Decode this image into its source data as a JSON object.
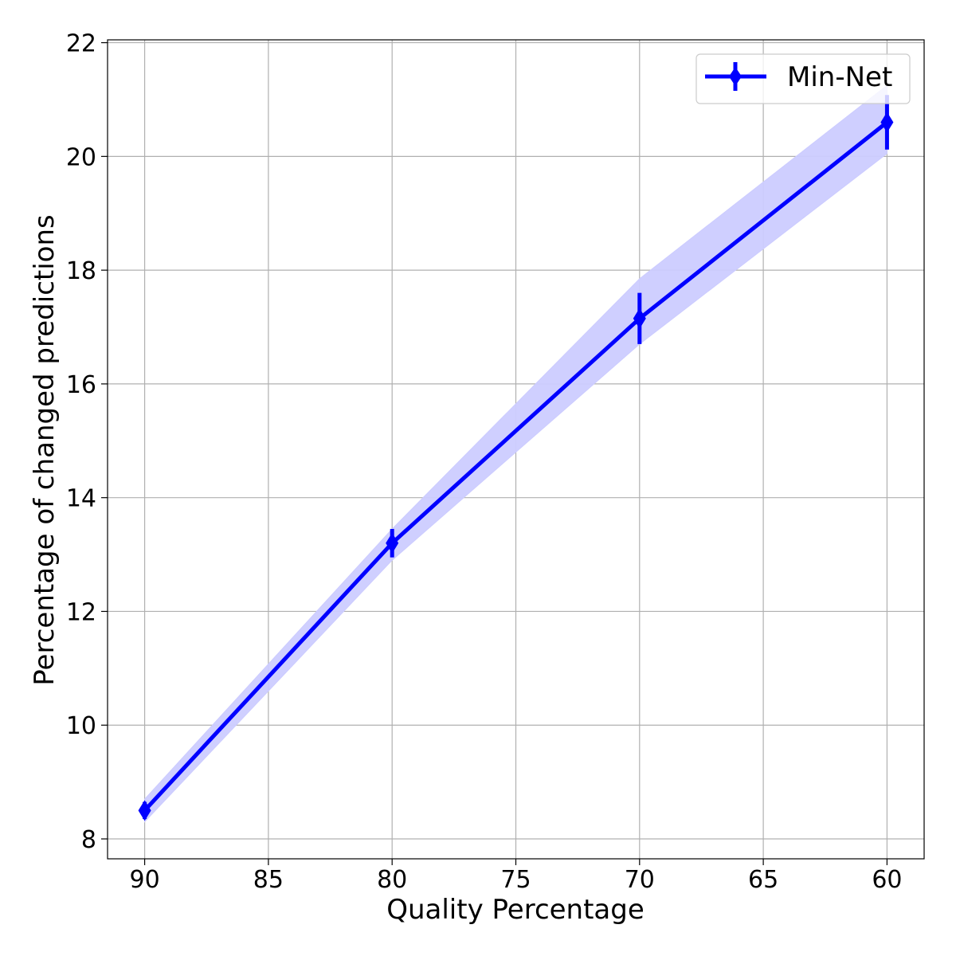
{
  "chart_data": {
    "type": "line",
    "title": "",
    "xlabel": "Quality Percentage",
    "ylabel": "Percentage of changed predictions",
    "x_inverted": true,
    "xlim": [
      91.5,
      58.5
    ],
    "ylim": [
      7.65,
      22.05
    ],
    "xticks": [
      90,
      85,
      80,
      75,
      70,
      65,
      60
    ],
    "yticks": [
      8,
      10,
      12,
      14,
      16,
      18,
      20,
      22
    ],
    "grid": true,
    "legend_position": "top-right",
    "series": [
      {
        "name": "Min-Net",
        "color": "#0000ff",
        "band_color": "#ccccff",
        "marker": "diamond",
        "x": [
          90,
          80,
          70,
          60
        ],
        "y": [
          8.5,
          13.2,
          17.15,
          20.6
        ],
        "err": [
          0.15,
          0.25,
          0.45,
          0.48
        ],
        "band_lower": [
          8.3,
          12.9,
          16.7,
          20.05
        ],
        "band_upper": [
          8.7,
          13.45,
          17.85,
          21.25
        ]
      }
    ]
  }
}
